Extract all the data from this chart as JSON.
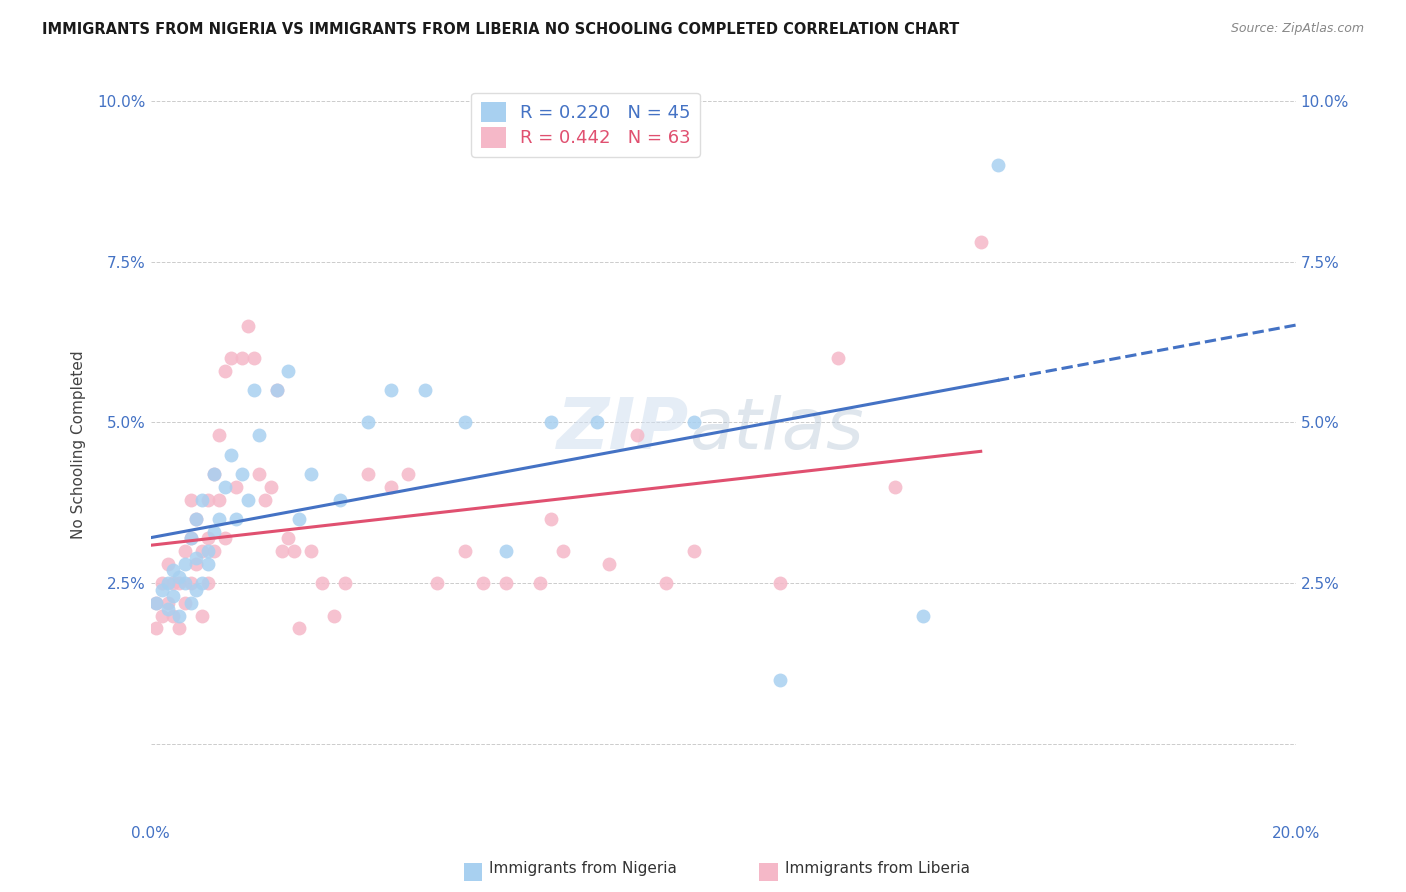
{
  "title": "IMMIGRANTS FROM NIGERIA VS IMMIGRANTS FROM LIBERIA NO SCHOOLING COMPLETED CORRELATION CHART",
  "source": "Source: ZipAtlas.com",
  "ylabel": "No Schooling Completed",
  "xlim": [
    0.0,
    0.2
  ],
  "ylim": [
    -0.012,
    0.105
  ],
  "xticks": [
    0.0,
    0.05,
    0.1,
    0.15,
    0.2
  ],
  "xticklabels": [
    "0.0%",
    "",
    "",
    "",
    "20.0%"
  ],
  "yticks": [
    0.0,
    0.025,
    0.05,
    0.075,
    0.1
  ],
  "yticklabels_left": [
    "",
    "2.5%",
    "5.0%",
    "7.5%",
    "10.0%"
  ],
  "yticklabels_right": [
    "",
    "2.5%",
    "5.0%",
    "7.5%",
    "10.0%"
  ],
  "legend_r_nigeria": "R = 0.220",
  "legend_n_nigeria": "N = 45",
  "legend_r_liberia": "R = 0.442",
  "legend_n_liberia": "N = 63",
  "legend_label_nigeria": "Immigrants from Nigeria",
  "legend_label_liberia": "Immigrants from Liberia",
  "color_nigeria": "#A8D0F0",
  "color_liberia": "#F5B8C8",
  "trendline_color_nigeria": "#4472C4",
  "trendline_color_liberia": "#E05070",
  "tick_color": "#4472C4",
  "watermark_line1": "ZIP",
  "watermark_line2": "atlas",
  "nigeria_x": [
    0.001,
    0.002,
    0.003,
    0.003,
    0.004,
    0.004,
    0.005,
    0.005,
    0.006,
    0.006,
    0.007,
    0.007,
    0.008,
    0.008,
    0.008,
    0.009,
    0.009,
    0.01,
    0.01,
    0.011,
    0.011,
    0.012,
    0.013,
    0.014,
    0.015,
    0.016,
    0.017,
    0.018,
    0.019,
    0.022,
    0.024,
    0.026,
    0.028,
    0.033,
    0.038,
    0.042,
    0.048,
    0.055,
    0.062,
    0.07,
    0.078,
    0.095,
    0.11,
    0.135,
    0.148
  ],
  "nigeria_y": [
    0.022,
    0.024,
    0.021,
    0.025,
    0.023,
    0.027,
    0.02,
    0.026,
    0.025,
    0.028,
    0.022,
    0.032,
    0.024,
    0.029,
    0.035,
    0.025,
    0.038,
    0.028,
    0.03,
    0.033,
    0.042,
    0.035,
    0.04,
    0.045,
    0.035,
    0.042,
    0.038,
    0.055,
    0.048,
    0.055,
    0.058,
    0.035,
    0.042,
    0.038,
    0.05,
    0.055,
    0.055,
    0.05,
    0.03,
    0.05,
    0.05,
    0.05,
    0.01,
    0.02,
    0.09
  ],
  "liberia_x": [
    0.001,
    0.001,
    0.002,
    0.002,
    0.003,
    0.003,
    0.004,
    0.004,
    0.005,
    0.005,
    0.006,
    0.006,
    0.007,
    0.007,
    0.007,
    0.008,
    0.008,
    0.009,
    0.009,
    0.01,
    0.01,
    0.01,
    0.011,
    0.011,
    0.012,
    0.012,
    0.013,
    0.013,
    0.014,
    0.015,
    0.016,
    0.017,
    0.018,
    0.019,
    0.02,
    0.021,
    0.022,
    0.023,
    0.024,
    0.025,
    0.026,
    0.028,
    0.03,
    0.032,
    0.034,
    0.038,
    0.042,
    0.045,
    0.05,
    0.055,
    0.058,
    0.062,
    0.068,
    0.07,
    0.072,
    0.08,
    0.085,
    0.09,
    0.095,
    0.11,
    0.12,
    0.13,
    0.145
  ],
  "liberia_y": [
    0.022,
    0.018,
    0.025,
    0.02,
    0.022,
    0.028,
    0.02,
    0.025,
    0.018,
    0.025,
    0.022,
    0.03,
    0.025,
    0.032,
    0.038,
    0.028,
    0.035,
    0.02,
    0.03,
    0.025,
    0.032,
    0.038,
    0.03,
    0.042,
    0.038,
    0.048,
    0.032,
    0.058,
    0.06,
    0.04,
    0.06,
    0.065,
    0.06,
    0.042,
    0.038,
    0.04,
    0.055,
    0.03,
    0.032,
    0.03,
    0.018,
    0.03,
    0.025,
    0.02,
    0.025,
    0.042,
    0.04,
    0.042,
    0.025,
    0.03,
    0.025,
    0.025,
    0.025,
    0.035,
    0.03,
    0.028,
    0.048,
    0.025,
    0.03,
    0.025,
    0.06,
    0.04,
    0.078
  ]
}
